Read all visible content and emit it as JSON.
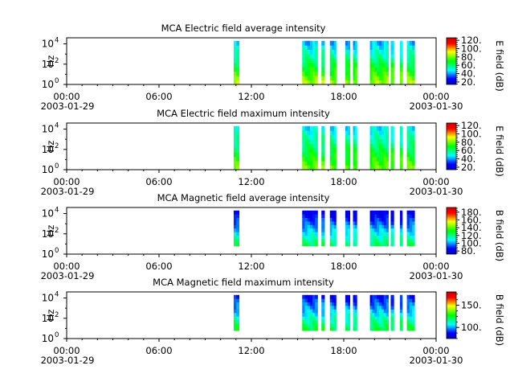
{
  "chart_data": [
    {
      "type": "heatmap",
      "title": "MCA  Electric field average intensity",
      "ylabel": "Hz",
      "ytick_labels": [
        "10",
        "10",
        "10"
      ],
      "ytick_exps": [
        "0",
        "2",
        "4"
      ],
      "xtick_labels": [
        "00:00",
        "06:00",
        "12:00",
        "18:00",
        "00:00"
      ],
      "xdate_labels": [
        "2003-01-29",
        "2003-01-30"
      ],
      "colorbar_label": "E field (dB)",
      "colorbar_ticks": [
        "20.",
        "40.",
        "60.",
        "80.",
        "100.",
        "120."
      ],
      "colorbar_values": [
        20,
        40,
        60,
        80,
        100,
        120
      ],
      "colorbar_range": [
        14,
        126
      ],
      "x_range_hours": [
        0,
        24
      ],
      "y_range_log10": [
        0,
        4.6
      ],
      "data_intervals_hours": [
        [
          10.85,
          11.2
        ],
        [
          15.3,
          16.3
        ],
        [
          16.55,
          16.75
        ],
        [
          17.1,
          17.5
        ],
        [
          18.1,
          18.4
        ],
        [
          18.6,
          18.85
        ],
        [
          19.7,
          20.9
        ],
        [
          21.05,
          21.25
        ],
        [
          21.65,
          21.8
        ],
        [
          22.1,
          22.6
        ]
      ],
      "band_log10": [
        0,
        4.3
      ],
      "low_freq_value": 85,
      "high_freq_value": 40
    },
    {
      "type": "heatmap",
      "title": "MCA  Electric field maximum intensity",
      "ylabel": "Hz",
      "ytick_labels": [
        "10",
        "10",
        "10"
      ],
      "ytick_exps": [
        "0",
        "2",
        "4"
      ],
      "xtick_labels": [
        "00:00",
        "06:00",
        "12:00",
        "18:00",
        "00:00"
      ],
      "xdate_labels": [
        "2003-01-29",
        "2003-01-30"
      ],
      "colorbar_label": "E field (dB)",
      "colorbar_ticks": [
        "20.",
        "40.",
        "60.",
        "80.",
        "100.",
        "120."
      ],
      "colorbar_values": [
        20,
        40,
        60,
        80,
        100,
        120
      ],
      "colorbar_range": [
        14,
        126
      ],
      "x_range_hours": [
        0,
        24
      ],
      "y_range_log10": [
        0,
        4.6
      ],
      "data_intervals_hours": [
        [
          10.85,
          11.2
        ],
        [
          15.3,
          16.3
        ],
        [
          16.55,
          16.75
        ],
        [
          17.1,
          17.5
        ],
        [
          18.1,
          18.4
        ],
        [
          18.6,
          18.85
        ],
        [
          19.7,
          20.9
        ],
        [
          21.05,
          21.25
        ],
        [
          21.65,
          21.8
        ],
        [
          22.1,
          22.6
        ]
      ],
      "band_log10": [
        0,
        4.3
      ],
      "low_freq_value": 80,
      "high_freq_value": 45
    },
    {
      "type": "heatmap",
      "title": "MCA  Magnetic field average intensity",
      "ylabel": "Hz",
      "ytick_labels": [
        "10",
        "10",
        "10"
      ],
      "ytick_exps": [
        "0",
        "2",
        "4"
      ],
      "xtick_labels": [
        "00:00",
        "06:00",
        "12:00",
        "18:00",
        "00:00"
      ],
      "xdate_labels": [
        "2003-01-29",
        "2003-01-30"
      ],
      "colorbar_label": "B field (dB)",
      "colorbar_ticks": [
        "80.",
        "100.",
        "120.",
        "140.",
        "160.",
        "180."
      ],
      "colorbar_values": [
        80,
        100,
        120,
        140,
        160,
        180
      ],
      "colorbar_range": [
        72,
        192
      ],
      "x_range_hours": [
        0,
        24
      ],
      "y_range_log10": [
        0,
        4.6
      ],
      "data_intervals_hours": [
        [
          10.85,
          11.2
        ],
        [
          15.3,
          16.3
        ],
        [
          16.55,
          16.75
        ],
        [
          17.1,
          17.5
        ],
        [
          18.1,
          18.4
        ],
        [
          18.6,
          18.85
        ],
        [
          19.7,
          20.9
        ],
        [
          21.05,
          21.25
        ],
        [
          21.65,
          21.8
        ],
        [
          22.1,
          22.6
        ]
      ],
      "band_log10": [
        0.8,
        4.3
      ],
      "low_freq_value": 125,
      "high_freq_value": 78
    },
    {
      "type": "heatmap",
      "title": "MCA  Magnetic field maximum intensity",
      "ylabel": "Hz",
      "ytick_labels": [
        "10",
        "10",
        "10"
      ],
      "ytick_exps": [
        "0",
        "2",
        "4"
      ],
      "xtick_labels": [
        "00:00",
        "06:00",
        "12:00",
        "18:00",
        "00:00"
      ],
      "xdate_labels": [
        "2003-01-29",
        "2003-01-30"
      ],
      "colorbar_label": "B field (dB)",
      "colorbar_ticks": [
        "100.",
        "150."
      ],
      "colorbar_values": [
        100,
        150
      ],
      "colorbar_range": [
        75,
        180
      ],
      "x_range_hours": [
        0,
        24
      ],
      "y_range_log10": [
        0,
        4.6
      ],
      "data_intervals_hours": [
        [
          10.85,
          11.2
        ],
        [
          15.3,
          16.3
        ],
        [
          16.55,
          16.75
        ],
        [
          17.1,
          17.5
        ],
        [
          18.1,
          18.4
        ],
        [
          18.6,
          18.85
        ],
        [
          19.7,
          20.9
        ],
        [
          21.05,
          21.25
        ],
        [
          21.65,
          21.8
        ],
        [
          22.1,
          22.6
        ]
      ],
      "band_log10": [
        0.8,
        4.3
      ],
      "low_freq_value": 125,
      "high_freq_value": 85
    }
  ]
}
